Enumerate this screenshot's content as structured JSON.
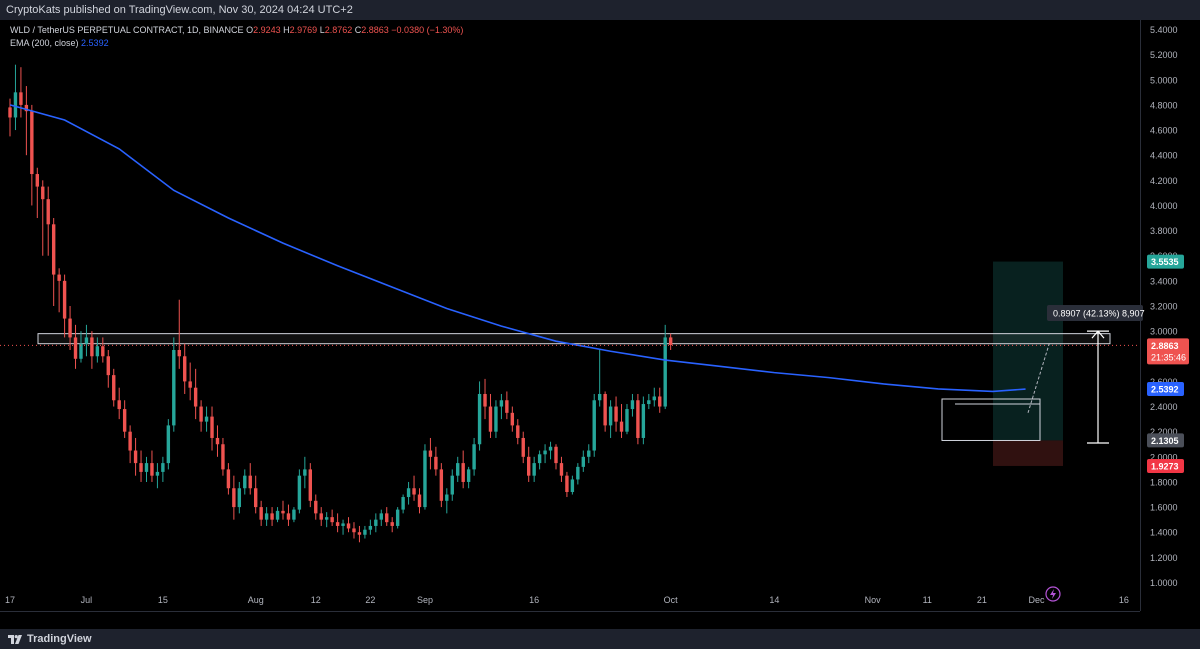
{
  "header": {
    "published": "CryptoKats published on TradingView.com, Nov 30, 2024 04:24 UTC+2"
  },
  "legend": {
    "symbol": "WLD / TetherUS PERPETUAL CONTRACT, 1D, BINANCE",
    "o_label": "O",
    "o": "2.9243",
    "h_label": "H",
    "h": "2.9769",
    "l_label": "L",
    "l": "2.8762",
    "c_label": "C",
    "c": "2.8863",
    "change": "−0.0380 (−1.30%)",
    "ema_label": "EMA (200, close)",
    "ema_value": "2.5392"
  },
  "footer": {
    "brand": "TradingView"
  },
  "chart_data": {
    "type": "candlestick",
    "symbol": "WLD / TetherUS PERPETUAL CONTRACT",
    "interval": "1D",
    "exchange": "BINANCE",
    "ylim": [
      1.0,
      5.4
    ],
    "y_ticks": [
      "5.4000",
      "5.2000",
      "5.0000",
      "4.8000",
      "4.6000",
      "4.4000",
      "4.2000",
      "4.0000",
      "3.8000",
      "3.6000",
      "3.4000",
      "3.2000",
      "3.0000",
      "2.8000",
      "2.6000",
      "2.4000",
      "2.2000",
      "2.0000",
      "1.8000",
      "1.6000",
      "1.4000",
      "1.2000",
      "1.0000"
    ],
    "x_ticks": [
      "17",
      "Jul",
      "15",
      "Aug",
      "12",
      "22",
      "Sep",
      "16",
      "Oct",
      "14",
      "Nov",
      "11",
      "21",
      "Dec",
      "16"
    ],
    "x_tick_day_index": [
      0,
      14,
      28,
      45,
      56,
      66,
      76,
      96,
      121,
      140,
      158,
      168,
      178,
      188,
      204
    ],
    "first_day": "2024-06-17",
    "up_color": "#26a69a",
    "down_color": "#ef5350",
    "ema_color": "#2962ff",
    "candles": [
      [
        4.78,
        4.85,
        4.55,
        4.7
      ],
      [
        4.7,
        5.12,
        4.6,
        4.9
      ],
      [
        4.9,
        5.1,
        4.7,
        4.8
      ],
      [
        4.8,
        4.95,
        4.4,
        4.75
      ],
      [
        4.75,
        4.8,
        4.0,
        4.25
      ],
      [
        4.25,
        4.3,
        3.9,
        4.15
      ],
      [
        4.15,
        4.2,
        3.6,
        4.05
      ],
      [
        4.05,
        4.15,
        3.6,
        3.85
      ],
      [
        3.85,
        3.9,
        3.2,
        3.45
      ],
      [
        3.45,
        3.5,
        3.15,
        3.4
      ],
      [
        3.4,
        3.45,
        2.95,
        3.1
      ],
      [
        3.1,
        3.2,
        2.85,
        2.95
      ],
      [
        2.95,
        3.05,
        2.7,
        2.78
      ],
      [
        2.78,
        3.0,
        2.75,
        2.9
      ],
      [
        2.9,
        3.05,
        2.8,
        2.95
      ],
      [
        2.95,
        3.0,
        2.7,
        2.8
      ],
      [
        2.8,
        2.95,
        2.75,
        2.88
      ],
      [
        2.88,
        2.95,
        2.75,
        2.8
      ],
      [
        2.8,
        2.85,
        2.55,
        2.65
      ],
      [
        2.65,
        2.7,
        2.4,
        2.45
      ],
      [
        2.45,
        2.55,
        2.3,
        2.38
      ],
      [
        2.38,
        2.45,
        2.15,
        2.2
      ],
      [
        2.2,
        2.25,
        1.95,
        2.05
      ],
      [
        2.05,
        2.15,
        1.85,
        1.95
      ],
      [
        1.95,
        2.05,
        1.8,
        1.88
      ],
      [
        1.88,
        2.0,
        1.8,
        1.95
      ],
      [
        1.95,
        2.05,
        1.8,
        1.85
      ],
      [
        1.85,
        1.95,
        1.75,
        1.88
      ],
      [
        1.88,
        2.0,
        1.8,
        1.95
      ],
      [
        1.95,
        2.3,
        1.9,
        2.25
      ],
      [
        2.25,
        2.95,
        2.2,
        2.85
      ],
      [
        2.85,
        3.25,
        2.7,
        2.8
      ],
      [
        2.8,
        2.9,
        2.5,
        2.6
      ],
      [
        2.6,
        2.75,
        2.45,
        2.55
      ],
      [
        2.55,
        2.7,
        2.3,
        2.4
      ],
      [
        2.4,
        2.45,
        2.2,
        2.28
      ],
      [
        2.28,
        2.4,
        2.2,
        2.32
      ],
      [
        2.32,
        2.4,
        2.05,
        2.15
      ],
      [
        2.15,
        2.25,
        2.0,
        2.1
      ],
      [
        2.1,
        2.15,
        1.85,
        1.9
      ],
      [
        1.9,
        1.95,
        1.7,
        1.75
      ],
      [
        1.75,
        1.85,
        1.5,
        1.6
      ],
      [
        1.6,
        1.8,
        1.55,
        1.75
      ],
      [
        1.75,
        1.9,
        1.7,
        1.85
      ],
      [
        1.85,
        1.95,
        1.7,
        1.75
      ],
      [
        1.75,
        1.85,
        1.55,
        1.6
      ],
      [
        1.6,
        1.65,
        1.45,
        1.5
      ],
      [
        1.5,
        1.6,
        1.45,
        1.55
      ],
      [
        1.55,
        1.6,
        1.45,
        1.5
      ],
      [
        1.5,
        1.6,
        1.48,
        1.57
      ],
      [
        1.57,
        1.65,
        1.5,
        1.55
      ],
      [
        1.55,
        1.62,
        1.45,
        1.5
      ],
      [
        1.5,
        1.6,
        1.48,
        1.58
      ],
      [
        1.58,
        1.9,
        1.55,
        1.85
      ],
      [
        1.85,
        2.0,
        1.75,
        1.9
      ],
      [
        1.9,
        1.95,
        1.6,
        1.65
      ],
      [
        1.65,
        1.7,
        1.5,
        1.55
      ],
      [
        1.55,
        1.6,
        1.45,
        1.5
      ],
      [
        1.5,
        1.56,
        1.44,
        1.52
      ],
      [
        1.52,
        1.58,
        1.45,
        1.48
      ],
      [
        1.48,
        1.55,
        1.4,
        1.45
      ],
      [
        1.45,
        1.5,
        1.38,
        1.47
      ],
      [
        1.47,
        1.52,
        1.4,
        1.43
      ],
      [
        1.43,
        1.48,
        1.35,
        1.4
      ],
      [
        1.4,
        1.45,
        1.32,
        1.38
      ],
      [
        1.38,
        1.45,
        1.35,
        1.42
      ],
      [
        1.42,
        1.5,
        1.38,
        1.45
      ],
      [
        1.45,
        1.55,
        1.4,
        1.5
      ],
      [
        1.5,
        1.58,
        1.45,
        1.55
      ],
      [
        1.55,
        1.6,
        1.45,
        1.48
      ],
      [
        1.48,
        1.52,
        1.4,
        1.45
      ],
      [
        1.45,
        1.6,
        1.43,
        1.58
      ],
      [
        1.58,
        1.7,
        1.55,
        1.68
      ],
      [
        1.68,
        1.8,
        1.62,
        1.75
      ],
      [
        1.75,
        1.85,
        1.65,
        1.7
      ],
      [
        1.7,
        1.75,
        1.55,
        1.6
      ],
      [
        1.6,
        2.1,
        1.58,
        2.05
      ],
      [
        2.05,
        2.15,
        1.9,
        2.0
      ],
      [
        2.0,
        2.08,
        1.85,
        1.9
      ],
      [
        1.9,
        1.95,
        1.6,
        1.65
      ],
      [
        1.65,
        1.75,
        1.55,
        1.7
      ],
      [
        1.7,
        1.9,
        1.65,
        1.85
      ],
      [
        1.85,
        2.0,
        1.8,
        1.95
      ],
      [
        1.95,
        2.05,
        1.75,
        1.8
      ],
      [
        1.8,
        1.92,
        1.75,
        1.9
      ],
      [
        1.9,
        2.15,
        1.85,
        2.1
      ],
      [
        2.1,
        2.6,
        2.05,
        2.5
      ],
      [
        2.5,
        2.62,
        2.3,
        2.4
      ],
      [
        2.4,
        2.5,
        2.15,
        2.2
      ],
      [
        2.2,
        2.45,
        2.15,
        2.4
      ],
      [
        2.4,
        2.5,
        2.3,
        2.45
      ],
      [
        2.45,
        2.52,
        2.3,
        2.35
      ],
      [
        2.35,
        2.4,
        2.2,
        2.25
      ],
      [
        2.25,
        2.3,
        2.1,
        2.15
      ],
      [
        2.15,
        2.2,
        1.95,
        2.0
      ],
      [
        2.0,
        2.08,
        1.8,
        1.85
      ],
      [
        1.85,
        2.0,
        1.8,
        1.95
      ],
      [
        1.95,
        2.05,
        1.9,
        2.02
      ],
      [
        2.02,
        2.1,
        1.95,
        2.05
      ],
      [
        2.05,
        2.12,
        1.98,
        2.08
      ],
      [
        2.08,
        2.1,
        1.9,
        1.95
      ],
      [
        1.95,
        2.0,
        1.8,
        1.85
      ],
      [
        1.85,
        1.88,
        1.68,
        1.72
      ],
      [
        1.72,
        1.85,
        1.7,
        1.82
      ],
      [
        1.82,
        1.95,
        1.78,
        1.92
      ],
      [
        1.92,
        2.05,
        1.88,
        2.0
      ],
      [
        2.0,
        2.1,
        1.95,
        2.05
      ],
      [
        2.05,
        2.5,
        2.0,
        2.45
      ],
      [
        2.45,
        2.85,
        2.4,
        2.5
      ],
      [
        2.5,
        2.52,
        2.2,
        2.25
      ],
      [
        2.25,
        2.45,
        2.15,
        2.4
      ],
      [
        2.4,
        2.48,
        2.2,
        2.28
      ],
      [
        2.28,
        2.42,
        2.15,
        2.2
      ],
      [
        2.2,
        2.42,
        2.18,
        2.38
      ],
      [
        2.38,
        2.5,
        2.32,
        2.45
      ],
      [
        2.45,
        2.5,
        2.1,
        2.15
      ],
      [
        2.15,
        2.48,
        2.1,
        2.42
      ],
      [
        2.42,
        2.5,
        2.38,
        2.45
      ],
      [
        2.45,
        2.55,
        2.4,
        2.48
      ],
      [
        2.48,
        2.55,
        2.35,
        2.4
      ],
      [
        2.4,
        3.05,
        2.38,
        2.95
      ],
      [
        2.95,
        2.98,
        2.85,
        2.89
      ]
    ],
    "ema_200": [
      [
        0,
        4.8
      ],
      [
        10,
        4.68
      ],
      [
        20,
        4.45
      ],
      [
        30,
        4.12
      ],
      [
        40,
        3.9
      ],
      [
        50,
        3.7
      ],
      [
        60,
        3.52
      ],
      [
        70,
        3.35
      ],
      [
        80,
        3.18
      ],
      [
        90,
        3.04
      ],
      [
        100,
        2.92
      ],
      [
        110,
        2.84
      ],
      [
        120,
        2.77
      ],
      [
        130,
        2.72
      ],
      [
        140,
        2.67
      ],
      [
        150,
        2.63
      ],
      [
        160,
        2.58
      ],
      [
        170,
        2.54
      ],
      [
        180,
        2.52
      ],
      [
        186,
        2.5392
      ]
    ],
    "resistance_zone": [
      2.9,
      2.98
    ],
    "range_box": [
      2.13,
      2.46
    ],
    "long_position": {
      "target_label": "3.5535",
      "entry_label": "2.1305",
      "stop_label": "1.9273"
    },
    "price_labels": {
      "current": "2.8863",
      "countdown": "21:35:46",
      "ema": "2.5392"
    },
    "measure": {
      "text": "0.8907 (42.13%) 8,907"
    }
  }
}
